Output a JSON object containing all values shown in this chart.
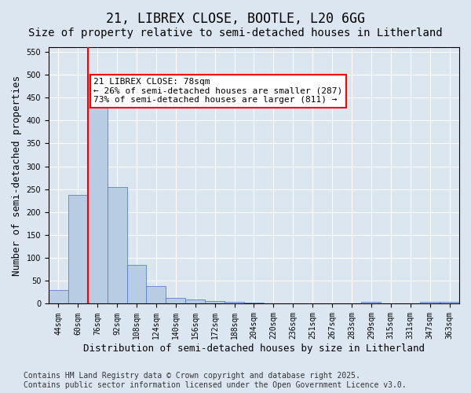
{
  "title_line1": "21, LIBREX CLOSE, BOOTLE, L20 6GG",
  "title_line2": "Size of property relative to semi-detached houses in Litherland",
  "xlabel": "Distribution of semi-detached houses by size in Litherland",
  "ylabel": "Number of semi-detached properties",
  "categories": [
    "44sqm",
    "60sqm",
    "76sqm",
    "92sqm",
    "108sqm",
    "124sqm",
    "140sqm",
    "156sqm",
    "172sqm",
    "188sqm",
    "204sqm",
    "220sqm",
    "236sqm",
    "251sqm",
    "267sqm",
    "283sqm",
    "299sqm",
    "315sqm",
    "331sqm",
    "347sqm",
    "363sqm"
  ],
  "values": [
    30,
    237,
    428,
    255,
    85,
    38,
    13,
    9,
    6,
    4,
    2,
    0,
    0,
    0,
    0,
    0,
    5,
    0,
    0,
    5,
    4
  ],
  "bar_color": "#b8cce4",
  "bar_edge_color": "#4472c4",
  "highlight_index": 2,
  "property_size": 78,
  "property_label": "21 LIBREX CLOSE: 78sqm",
  "pct_smaller": 26,
  "count_smaller": 287,
  "pct_larger": 73,
  "count_larger": 811,
  "annotation_box_color": "#ff0000",
  "vline_color": "#ff0000",
  "ylim": [
    0,
    560
  ],
  "yticks": [
    0,
    50,
    100,
    150,
    200,
    250,
    300,
    350,
    400,
    450,
    500,
    550
  ],
  "background_color": "#dce6f1",
  "plot_bg_color": "#dce6f1",
  "footer": "Contains HM Land Registry data © Crown copyright and database right 2025.\nContains public sector information licensed under the Open Government Licence v3.0.",
  "footer_fontsize": 7,
  "title1_fontsize": 12,
  "title2_fontsize": 10,
  "xlabel_fontsize": 9,
  "ylabel_fontsize": 9,
  "tick_fontsize": 7,
  "annotation_fontsize": 8
}
